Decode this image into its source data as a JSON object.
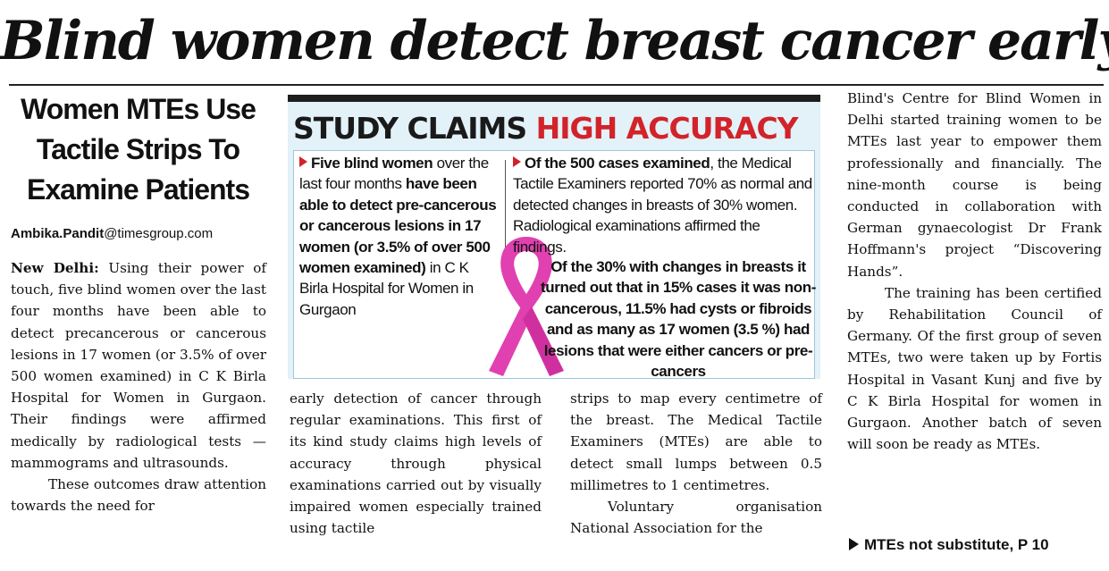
{
  "headline": "Blind women detect breast cancer early",
  "subhead": "Women MTEs Use Tactile Strips To Examine Patients",
  "byline": {
    "name": "Ambika.Pandit",
    "domain": "@timesgroup.com"
  },
  "body": {
    "dateline": "New Delhi:",
    "p1": "Using their power of touch, five blind women over the last four months have been able to detect precancerous or cancerous lesions in 17 women (or 3.5% of over 500 women examined) in C K Birla Hospital for Women in Gurgaon. Their findings were affirmed medically by radiological tests — mammograms and ultrasounds.",
    "p2a": "These outcomes draw attention towards the need for",
    "p2b": "early detection of cancer through regular examinations. This first of its kind study claims high levels of accuracy through physical examinations carried out by visually impaired women especially trained using tactile",
    "p2c": "strips to map every centimetre of the breast. The Medical Tactile Examiners (MTEs) are able to detect small lumps between 0.5 millimetres to 1 centimetres.",
    "p3a": "Voluntary organisation National Association for the",
    "p3b": "Blind's Centre for Blind Women in Delhi started training women to be MTEs last year to empower them professionally and financially. The nine-month course is being conducted in collaboration with German gynaecologist Dr Frank Hoffmann's project “Discovering Hands”.",
    "p4": "The training has been certified by Rehabilitation Council of Germany. Of the first group of seven MTEs, two were taken up by Fortis Hospital in Vasant Kunj and five by C K Birla Hospital for women in Gurgaon. Another batch of seven will soon be ready as MTEs."
  },
  "box": {
    "title_part1": "STUDY CLAIMS",
    "title_part2": "HIGH ACCURACY",
    "left_bold1": "Five blind women",
    "left_plain1": "over the last four months",
    "left_bold2": "have been able to detect pre-cancerous or cancerous lesions in 17 women (or 3.5% of over 500 women examined)",
    "left_plain2": "in C K Birla Hospital for Women in Gurgaon",
    "right_bold1": "Of the 500 cases examined",
    "right_plain1": ", the Medical Tactile Examiners reported 70% as normal and detected changes in breasts of 30% women. Radiological examinations affirmed the findings.",
    "right_bold2": "Of the 30% with changes in breasts it turned out that in 15% cases it was non-cancerous, 11.5% had cysts or fibroids and as many as 17 women (3.5 %) had lesions that were either cancers or pre-cancers",
    "ribbon_color": "#e040b0",
    "accent_color": "#d2232a"
  },
  "see_also": "MTEs not substitute, P 10"
}
